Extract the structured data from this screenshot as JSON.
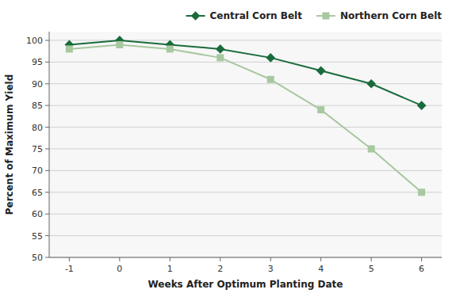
{
  "chart_data": {
    "type": "line",
    "x": [
      -1,
      0,
      1,
      2,
      3,
      4,
      5,
      6
    ],
    "series": [
      {
        "name": "Central Corn Belt",
        "color": "#1a6b3c",
        "marker": "diamond",
        "values": [
          99,
          100,
          99,
          98,
          96,
          93,
          90,
          85
        ]
      },
      {
        "name": "Northern Corn Belt",
        "color": "#a8c8a0",
        "marker": "square",
        "values": [
          98,
          99,
          98,
          96,
          91,
          84,
          75,
          65
        ]
      }
    ],
    "xlabel": "Weeks After Optimum Planting Date",
    "ylabel": "Percent of Maximum Yield",
    "xlim": [
      -1.4,
      6.4
    ],
    "ylim": [
      50,
      102
    ],
    "xticks": [
      -1,
      0,
      1,
      2,
      3,
      4,
      5,
      6
    ],
    "yticks": [
      50,
      55,
      60,
      65,
      70,
      75,
      80,
      85,
      90,
      95,
      100
    ],
    "grid": true,
    "legend": "top"
  }
}
